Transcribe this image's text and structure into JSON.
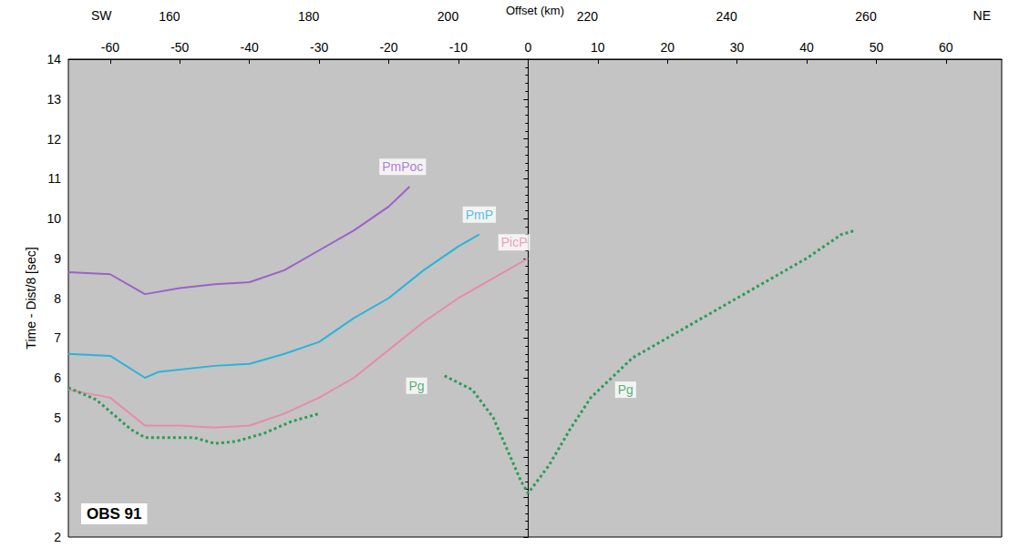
{
  "chart_data": {
    "type": "line",
    "xlabel": "Offset (km)",
    "ylabel": "Time - Dist/8 [sec]",
    "xlim": [
      -66,
      68
    ],
    "xticks": [
      -60,
      -50,
      -40,
      -30,
      -20,
      -10,
      0,
      10,
      20,
      30,
      40,
      50,
      60
    ],
    "x2lim": [
      145.5,
      279.5
    ],
    "x2ticks": [
      160,
      180,
      200,
      220,
      240,
      260
    ],
    "ylim": [
      2,
      14
    ],
    "yticks": [
      2,
      3,
      4,
      5,
      6,
      7,
      8,
      9,
      10,
      11,
      12,
      13,
      14
    ],
    "grid": false,
    "direction_labels": [
      "SW",
      "NE"
    ],
    "panel_label": "OBS 91",
    "series": [
      {
        "name": "PmPoc",
        "color": "#9a62c8",
        "line_style": "solid",
        "x": [
          -66,
          -60,
          -55,
          -50,
          -45,
          -40,
          -35,
          -30,
          -25,
          -20,
          -17
        ],
        "values": [
          8.65,
          8.6,
          8.1,
          8.25,
          8.35,
          8.4,
          8.7,
          9.2,
          9.7,
          10.3,
          10.8
        ]
      },
      {
        "name": "PmP",
        "color": "#2bb3d9",
        "line_style": "solid",
        "x": [
          -66,
          -60,
          -55,
          -53,
          -45,
          -40,
          -35,
          -30,
          -25,
          -20,
          -15,
          -10,
          -7
        ],
        "values": [
          6.6,
          6.55,
          6.0,
          6.15,
          6.3,
          6.35,
          6.6,
          6.9,
          7.5,
          8.0,
          8.7,
          9.3,
          9.6
        ]
      },
      {
        "name": "PicP",
        "color": "#e88aaa",
        "line_style": "solid",
        "x": [
          -66,
          -60,
          -55,
          -50,
          -45,
          -40,
          -35,
          -30,
          -25,
          -20,
          -15,
          -10,
          -5,
          0
        ],
        "values": [
          5.7,
          5.5,
          4.8,
          4.8,
          4.75,
          4.8,
          5.1,
          5.5,
          6.0,
          6.7,
          7.4,
          8.0,
          8.5,
          9.0
        ]
      },
      {
        "name": "Pg",
        "color": "#2d9c5a",
        "line_style": "dotted",
        "x": [
          -66,
          -62,
          -57,
          -55,
          -48,
          -45,
          -42,
          -38,
          -34,
          -30,
          -22,
          -12,
          -8,
          -5,
          -3,
          -1,
          0,
          3,
          6,
          9,
          12,
          15,
          20,
          25,
          30,
          35,
          40,
          45,
          47
        ],
        "values": [
          5.75,
          5.45,
          4.7,
          4.5,
          4.5,
          4.35,
          4.4,
          4.6,
          4.9,
          5.1,
          null,
          6.05,
          5.7,
          5.0,
          4.2,
          3.4,
          3.1,
          3.8,
          4.7,
          5.5,
          6.0,
          6.5,
          7.0,
          7.5,
          8.0,
          8.5,
          9.0,
          9.6,
          9.7
        ]
      }
    ],
    "annotations": [
      {
        "text": "PmPoc",
        "x": -18,
        "y": 11.3,
        "color": "#9a62c8"
      },
      {
        "text": "PmP",
        "x": -7,
        "y": 10.1,
        "color": "#2bb3d9"
      },
      {
        "text": "PicP",
        "x": -2,
        "y": 9.4,
        "color": "#e88aaa"
      },
      {
        "text": "Pg",
        "x": -16,
        "y": 5.8,
        "color": "#2d9c5a"
      },
      {
        "text": "Pg",
        "x": 14,
        "y": 5.7,
        "color": "#2d9c5a"
      }
    ]
  }
}
